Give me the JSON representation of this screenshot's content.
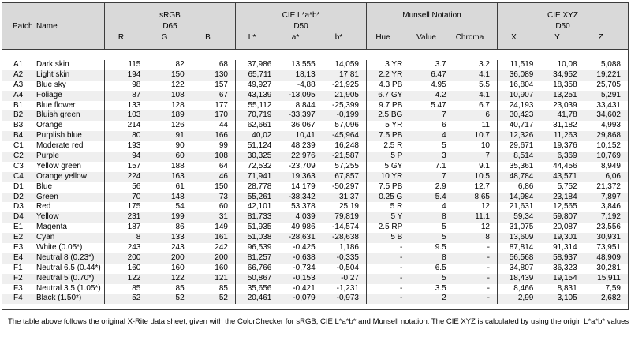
{
  "page": {
    "footer": "The table above follows the original X-Rite data sheet, given with the ColorChecker for sRGB, CIE L*a*b* and Munsell notation. The CIE XYZ is calculated by using the origin L*a*b* values for illuminant D50."
  },
  "table": {
    "header": {
      "patch_label": "Patch",
      "name_label": "Name",
      "groups": [
        {
          "title": "sRGB",
          "subtitle": "D65",
          "columns": [
            "R",
            "G",
            "B"
          ]
        },
        {
          "title": "CIE L*a*b*",
          "subtitle": "D50",
          "columns": [
            "L*",
            "a*",
            "b*"
          ]
        },
        {
          "title": "Munsell Notation",
          "subtitle": "",
          "columns": [
            "Hue",
            "Value",
            "Chroma"
          ]
        },
        {
          "title": "CIE XYZ",
          "subtitle": "D50",
          "columns": [
            "X",
            "Y",
            "Z"
          ]
        }
      ]
    },
    "colors": {
      "header_bg": "#d9d9d9",
      "stripe_bg": "#efefef",
      "border": "#3c3c3c"
    },
    "rows": [
      [
        "A1",
        "Dark skin",
        "115",
        "82",
        "68",
        "37,986",
        "13,555",
        "14,059",
        "3 YR",
        "3.7",
        "3.2",
        "11,519",
        "10,08",
        "5,088"
      ],
      [
        "A2",
        "Light skin",
        "194",
        "150",
        "130",
        "65,711",
        "18,13",
        "17,81",
        "2.2 YR",
        "6.47",
        "4.1",
        "36,089",
        "34,952",
        "19,221"
      ],
      [
        "A3",
        "Blue sky",
        "98",
        "122",
        "157",
        "49,927",
        "-4,88",
        "-21,925",
        "4.3 PB",
        "4.95",
        "5.5",
        "16,804",
        "18,358",
        "25,705"
      ],
      [
        "A4",
        "Foliage",
        "87",
        "108",
        "67",
        "43,139",
        "-13,095",
        "21,905",
        "6.7 GY",
        "4.2",
        "4.1",
        "10,907",
        "13,251",
        "5,291"
      ],
      [
        "B1",
        "Blue flower",
        "133",
        "128",
        "177",
        "55,112",
        "8,844",
        "-25,399",
        "9.7 PB",
        "5.47",
        "6.7",
        "24,193",
        "23,039",
        "33,431"
      ],
      [
        "B2",
        "Bluish green",
        "103",
        "189",
        "170",
        "70,719",
        "-33,397",
        "-0,199",
        "2.5 BG",
        "7",
        "6",
        "30,423",
        "41,78",
        "34,602"
      ],
      [
        "B3",
        "Orange",
        "214",
        "126",
        "44",
        "62,661",
        "36,067",
        "57,096",
        "5 YR",
        "6",
        "11",
        "40,717",
        "31,182",
        "4,993"
      ],
      [
        "B4",
        "Purplish blue",
        "80",
        "91",
        "166",
        "40,02",
        "10,41",
        "-45,964",
        "7.5 PB",
        "4",
        "10.7",
        "12,326",
        "11,263",
        "29,868"
      ],
      [
        "C1",
        "Moderate red",
        "193",
        "90",
        "99",
        "51,124",
        "48,239",
        "16,248",
        "2.5 R",
        "5",
        "10",
        "29,671",
        "19,376",
        "10,152"
      ],
      [
        "C2",
        "Purple",
        "94",
        "60",
        "108",
        "30,325",
        "22,976",
        "-21,587",
        "5 P",
        "3",
        "7",
        "8,514",
        "6,369",
        "10,769"
      ],
      [
        "C3",
        "Yellow green",
        "157",
        "188",
        "64",
        "72,532",
        "-23,709",
        "57,255",
        "5 GY",
        "7.1",
        "9.1",
        "35,361",
        "44,456",
        "8,949"
      ],
      [
        "C4",
        "Orange yellow",
        "224",
        "163",
        "46",
        "71,941",
        "19,363",
        "67,857",
        "10 YR",
        "7",
        "10.5",
        "48,784",
        "43,571",
        "6,06"
      ],
      [
        "D1",
        "Blue",
        "56",
        "61",
        "150",
        "28,778",
        "14,179",
        "-50,297",
        "7.5 PB",
        "2.9",
        "12.7",
        "6,86",
        "5,752",
        "21,372"
      ],
      [
        "D2",
        "Green",
        "70",
        "148",
        "73",
        "55,261",
        "-38,342",
        "31,37",
        "0.25 G",
        "5.4",
        "8.65",
        "14,984",
        "23,184",
        "7,897"
      ],
      [
        "D3",
        "Red",
        "175",
        "54",
        "60",
        "42,101",
        "53,378",
        "25,19",
        "5 R",
        "4",
        "12",
        "21,631",
        "12,565",
        "3,846"
      ],
      [
        "D4",
        "Yellow",
        "231",
        "199",
        "31",
        "81,733",
        "4,039",
        "79,819",
        "5 Y",
        "8",
        "11.1",
        "59,34",
        "59,807",
        "7,192"
      ],
      [
        "E1",
        "Magenta",
        "187",
        "86",
        "149",
        "51,935",
        "49,986",
        "-14,574",
        "2.5 RP",
        "5",
        "12",
        "31,075",
        "20,087",
        "23,556"
      ],
      [
        "E2",
        "Cyan",
        "8",
        "133",
        "161",
        "51,038",
        "-28,631",
        "-28,638",
        "5 B",
        "5",
        "8",
        "13,609",
        "19,301",
        "30,931"
      ],
      [
        "E3",
        "White (0.05*)",
        "243",
        "243",
        "242",
        "96,539",
        "-0,425",
        "1,186",
        "-",
        "9.5",
        "-",
        "87,814",
        "91,314",
        "73,951"
      ],
      [
        "E4",
        "Neutral 8 (0.23*)",
        "200",
        "200",
        "200",
        "81,257",
        "-0,638",
        "-0,335",
        "-",
        "8",
        "-",
        "56,568",
        "58,937",
        "48,909"
      ],
      [
        "F1",
        "Neutral 6.5 (0.44*)",
        "160",
        "160",
        "160",
        "66,766",
        "-0,734",
        "-0,504",
        "-",
        "6.5",
        "-",
        "34,807",
        "36,323",
        "30,281"
      ],
      [
        "F2",
        "Neutral 5 (0.70*)",
        "122",
        "122",
        "121",
        "50,867",
        "-0,153",
        "-0,27",
        "-",
        "5",
        "-",
        "18,439",
        "19,154",
        "15,911"
      ],
      [
        "F3",
        "Neutral 3.5 (1.05*)",
        "85",
        "85",
        "85",
        "35,656",
        "-0,421",
        "-1,231",
        "-",
        "3.5",
        "-",
        "8,466",
        "8,831",
        "7,59"
      ],
      [
        "F4",
        "Black (1.50*)",
        "52",
        "52",
        "52",
        "20,461",
        "-0,079",
        "-0,973",
        "-",
        "2",
        "-",
        "2,99",
        "3,105",
        "2,682"
      ]
    ]
  }
}
